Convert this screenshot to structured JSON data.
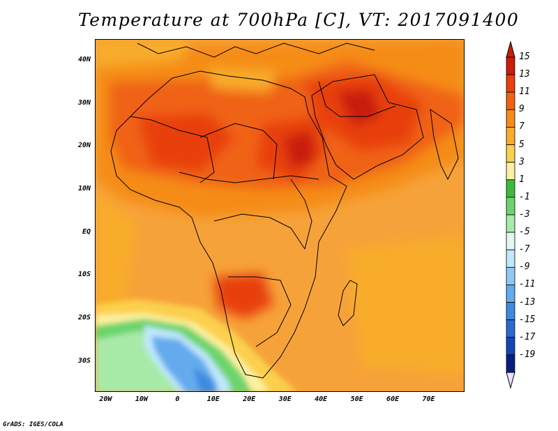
{
  "title": "Temperature at 700hPa [C], VT: 2017091400",
  "footer": "GrADS: IGES/COLA",
  "map": {
    "lon_range": [
      -23,
      80
    ],
    "lat_range": [
      -37,
      45
    ],
    "lat_ticks": [
      {
        "value": 40,
        "label": "40N"
      },
      {
        "value": 30,
        "label": "30N"
      },
      {
        "value": 20,
        "label": "20N"
      },
      {
        "value": 10,
        "label": "10N"
      },
      {
        "value": 0,
        "label": "EQ"
      },
      {
        "value": -10,
        "label": "10S"
      },
      {
        "value": -20,
        "label": "20S"
      },
      {
        "value": -30,
        "label": "30S"
      }
    ],
    "lon_ticks": [
      {
        "value": -20,
        "label": "20W"
      },
      {
        "value": -10,
        "label": "10W"
      },
      {
        "value": 0,
        "label": "0"
      },
      {
        "value": 10,
        "label": "10E"
      },
      {
        "value": 20,
        "label": "20E"
      },
      {
        "value": 30,
        "label": "30E"
      },
      {
        "value": 40,
        "label": "40E"
      },
      {
        "value": 50,
        "label": "50E"
      },
      {
        "value": 60,
        "label": "60E"
      },
      {
        "value": 70,
        "label": "70E"
      }
    ]
  },
  "colorbar": {
    "labels": [
      "15",
      "13",
      "11",
      "9",
      "7",
      "5",
      "3",
      "1",
      "-1",
      "-3",
      "-5",
      "-7",
      "-9",
      "-11",
      "-13",
      "-15",
      "-17",
      "-19"
    ],
    "colors": [
      "#c81e0a",
      "#e8400e",
      "#f06214",
      "#f58c18",
      "#f8ac2c",
      "#fbd04e",
      "#fdf0a0",
      "#3cba3c",
      "#6cd46c",
      "#a8eaa8",
      "#e0f8f0",
      "#c0e8fc",
      "#90c8f4",
      "#64aaee",
      "#3e8ae0",
      "#2a6ad0",
      "#1446b8",
      "#0a1e80"
    ],
    "top_arrow_color": "#c81e0a",
    "bottom_arrow_color": "#e6e2fc"
  }
}
